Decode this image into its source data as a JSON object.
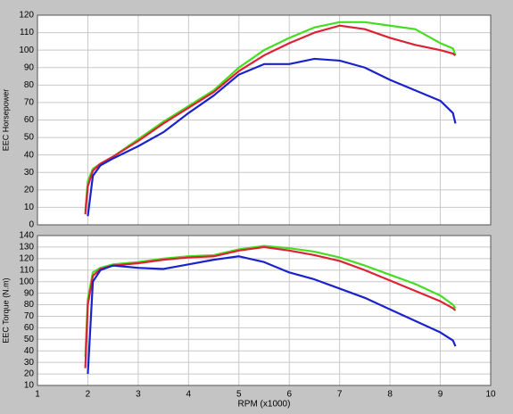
{
  "chart_data": [
    {
      "type": "line",
      "ylabel": "EEC Horsepower",
      "x": [
        1.95,
        2.0,
        2.1,
        2.25,
        2.5,
        3,
        3.5,
        4,
        4.5,
        5,
        5.5,
        6,
        6.5,
        7,
        7.5,
        8,
        8.5,
        9,
        9.25,
        9.3
      ],
      "series": [
        {
          "color": "#44dd22",
          "values": [
            8,
            25,
            32,
            35,
            39,
            49,
            59,
            68,
            77,
            90,
            100,
            107,
            113,
            116,
            116,
            114,
            112,
            104,
            101,
            97
          ]
        },
        {
          "color": "#dd2233",
          "values": [
            6,
            22,
            31,
            35,
            39,
            48,
            58,
            67,
            76,
            88,
            97,
            104,
            110,
            114,
            112,
            107,
            103,
            100,
            98,
            97
          ]
        },
        {
          "color": "#1a22cc",
          "values": [
            null,
            5,
            28,
            34,
            38,
            45,
            53,
            64,
            74,
            86,
            92,
            92,
            95,
            94,
            90,
            83,
            77,
            71,
            64,
            58
          ]
        }
      ],
      "xlim": [
        1,
        10
      ],
      "ylim": [
        0,
        120
      ],
      "yticks": [
        0,
        10,
        20,
        30,
        40,
        50,
        60,
        70,
        80,
        90,
        100,
        110,
        120
      ],
      "grid": true
    },
    {
      "type": "line",
      "ylabel": "EEC Torque (N.m)",
      "xlabel": "RPM (x1000)",
      "x": [
        1.95,
        2.0,
        2.1,
        2.25,
        2.5,
        3,
        3.5,
        4,
        4.5,
        5,
        5.5,
        6,
        6.5,
        7,
        7.5,
        8,
        8.5,
        9,
        9.25,
        9.3
      ],
      "series": [
        {
          "color": "#44dd22",
          "values": [
            35,
            85,
            108,
            112,
            115,
            117,
            120,
            122,
            123,
            128,
            131,
            129,
            126,
            121,
            114,
            106,
            98,
            88,
            80,
            77
          ]
        },
        {
          "color": "#dd2233",
          "values": [
            25,
            80,
            105,
            111,
            114,
            116,
            119,
            121,
            122,
            127,
            130,
            127,
            123,
            118,
            110,
            101,
            92,
            83,
            77,
            75
          ]
        },
        {
          "color": "#1a22cc",
          "values": [
            null,
            20,
            100,
            110,
            114,
            112,
            111,
            115,
            119,
            122,
            117,
            108,
            102,
            94,
            86,
            76,
            66,
            56,
            49,
            44
          ]
        }
      ],
      "xlim": [
        1,
        10
      ],
      "xticks": [
        1,
        2,
        3,
        4,
        5,
        6,
        7,
        8,
        9,
        10
      ],
      "ylim": [
        10,
        140
      ],
      "yticks": [
        10,
        20,
        30,
        40,
        50,
        60,
        70,
        80,
        90,
        100,
        110,
        120,
        130,
        140
      ],
      "grid": true
    }
  ]
}
